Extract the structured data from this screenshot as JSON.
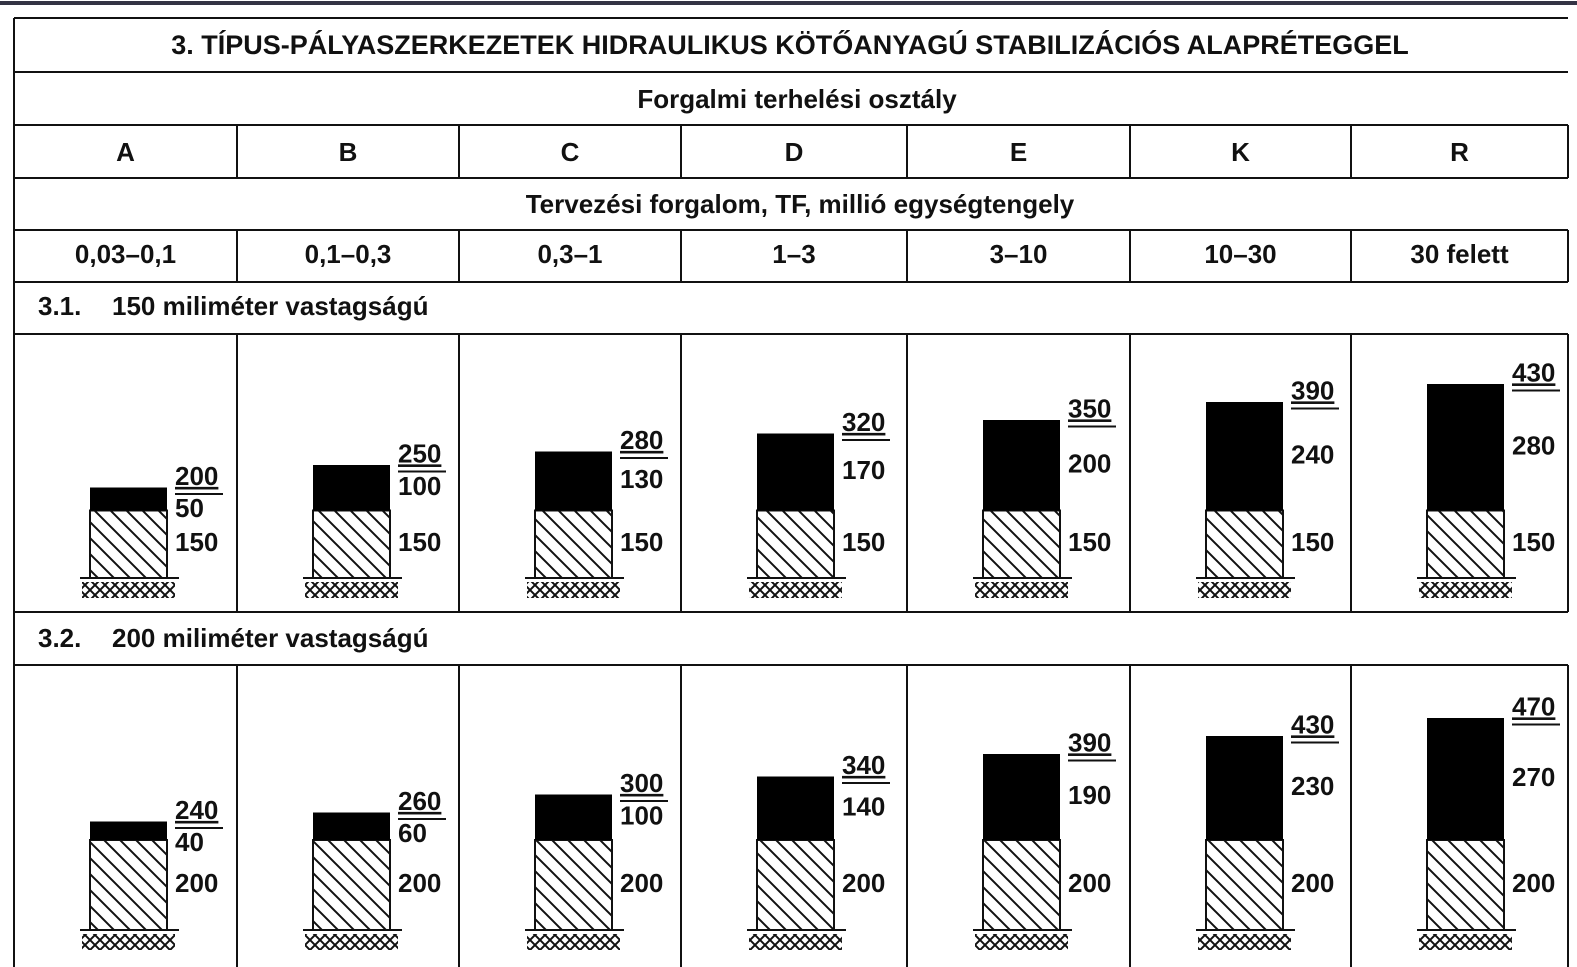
{
  "title": "3. TÍPUS-PÁLYASZERKEZETEK HIDRAULIKUS KÖTŐANYAGÚ STABILIZÁCIÓS ALAPRÉTEGGEL",
  "header": "Forgalmi terhelési osztály",
  "classes": [
    "A",
    "B",
    "C",
    "D",
    "E",
    "K",
    "R"
  ],
  "traffic_header": "Tervezési forgalom, TF, millió egységtengely",
  "traffic_ranges": [
    "0,03–0,1",
    "0,1–0,3",
    "0,3–1",
    "1–3",
    "3–10",
    "10–30",
    "30 felett"
  ],
  "sections": [
    {
      "number": "3.1.",
      "label": "150 miliméter vastagságú",
      "columns": [
        {
          "total": 200,
          "top": 50,
          "base": 150
        },
        {
          "total": 250,
          "top": 100,
          "base": 150
        },
        {
          "total": 280,
          "top": 130,
          "base": 150
        },
        {
          "total": 320,
          "top": 170,
          "base": 150
        },
        {
          "total": 350,
          "top": 200,
          "base": 150
        },
        {
          "total": 390,
          "top": 240,
          "base": 150
        },
        {
          "total": 430,
          "top": 280,
          "base": 150
        }
      ]
    },
    {
      "number": "3.2.",
      "label": "200 miliméter vastagságú",
      "columns": [
        {
          "total": 240,
          "top": 40,
          "base": 200
        },
        {
          "total": 260,
          "top": 60,
          "base": 200
        },
        {
          "total": 300,
          "top": 100,
          "base": 200
        },
        {
          "total": 340,
          "top": 140,
          "base": 200
        },
        {
          "total": 390,
          "top": 190,
          "base": 200
        },
        {
          "total": 430,
          "top": 230,
          "base": 200
        },
        {
          "total": 470,
          "top": 270,
          "base": 200
        }
      ]
    }
  ]
}
